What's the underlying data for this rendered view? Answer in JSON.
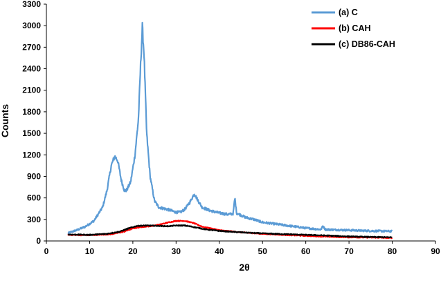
{
  "chart_data": {
    "type": "line",
    "title": "",
    "xlabel": "2θ",
    "ylabel": "Counts",
    "xlim": [
      0,
      90
    ],
    "ylim": [
      0,
      3300
    ],
    "xticks": [
      0,
      10,
      20,
      30,
      40,
      50,
      60,
      70,
      80,
      90
    ],
    "yticks": [
      0,
      300,
      600,
      900,
      1200,
      1500,
      1800,
      2100,
      2400,
      2700,
      3000,
      3300
    ],
    "grid": false,
    "legend_position": "top-right",
    "series": [
      {
        "name": "(a) C",
        "color": "#5b9bd5",
        "points": [
          [
            5,
            110
          ],
          [
            7,
            150
          ],
          [
            9,
            200
          ],
          [
            11,
            280
          ],
          [
            13,
            470
          ],
          [
            14,
            700
          ],
          [
            15,
            1050
          ],
          [
            15.8,
            1180
          ],
          [
            16.5,
            1120
          ],
          [
            17.3,
            850
          ],
          [
            18,
            710
          ],
          [
            18.5,
            700
          ],
          [
            19.5,
            820
          ],
          [
            20.5,
            1200
          ],
          [
            21.3,
            1700
          ],
          [
            21.8,
            2450
          ],
          [
            22.2,
            2980
          ],
          [
            22.6,
            2600
          ],
          [
            23.2,
            1500
          ],
          [
            24,
            900
          ],
          [
            25,
            560
          ],
          [
            26,
            470
          ],
          [
            28,
            440
          ],
          [
            30,
            400
          ],
          [
            31,
            400
          ],
          [
            32,
            440
          ],
          [
            33.2,
            540
          ],
          [
            34.2,
            660
          ],
          [
            35,
            570
          ],
          [
            36,
            470
          ],
          [
            38,
            420
          ],
          [
            40,
            390
          ],
          [
            42,
            370
          ],
          [
            43.2,
            380
          ],
          [
            43.6,
            600
          ],
          [
            44,
            390
          ],
          [
            46,
            330
          ],
          [
            48,
            300
          ],
          [
            50,
            260
          ],
          [
            55,
            220
          ],
          [
            60,
            180
          ],
          [
            63.5,
            160
          ],
          [
            64,
            210
          ],
          [
            64.5,
            160
          ],
          [
            70,
            150
          ],
          [
            75,
            140
          ],
          [
            80,
            135
          ]
        ]
      },
      {
        "name": "(b) CAH",
        "color": "#ff0000",
        "points": [
          [
            5,
            85
          ],
          [
            10,
            80
          ],
          [
            15,
            95
          ],
          [
            18,
            130
          ],
          [
            20,
            175
          ],
          [
            22,
            195
          ],
          [
            24,
            205
          ],
          [
            26,
            225
          ],
          [
            28,
            255
          ],
          [
            30,
            280
          ],
          [
            32,
            280
          ],
          [
            34,
            250
          ],
          [
            36,
            200
          ],
          [
            40,
            150
          ],
          [
            45,
            120
          ],
          [
            50,
            100
          ],
          [
            55,
            85
          ],
          [
            60,
            72
          ],
          [
            65,
            60
          ],
          [
            70,
            52
          ],
          [
            75,
            48
          ],
          [
            80,
            42
          ]
        ]
      },
      {
        "name": "(c) DB86-CAH",
        "color": "#000000",
        "points": [
          [
            5,
            90
          ],
          [
            10,
            85
          ],
          [
            14,
            100
          ],
          [
            17,
            130
          ],
          [
            19,
            175
          ],
          [
            21,
            210
          ],
          [
            23,
            215
          ],
          [
            26,
            210
          ],
          [
            28,
            205
          ],
          [
            30,
            215
          ],
          [
            32,
            215
          ],
          [
            34,
            195
          ],
          [
            37,
            160
          ],
          [
            40,
            140
          ],
          [
            45,
            120
          ],
          [
            50,
            105
          ],
          [
            55,
            95
          ],
          [
            60,
            85
          ],
          [
            65,
            75
          ],
          [
            70,
            62
          ],
          [
            75,
            55
          ],
          [
            80,
            50
          ]
        ]
      }
    ]
  }
}
